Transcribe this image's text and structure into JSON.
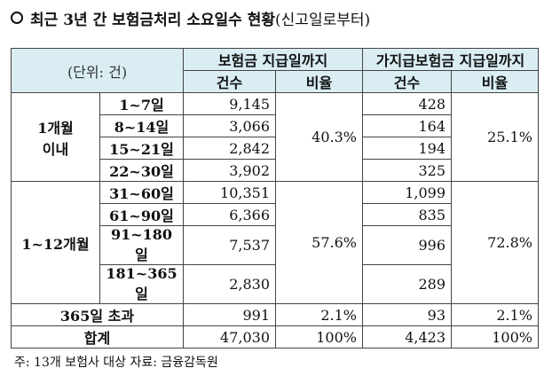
{
  "title": {
    "main": "최근 3년 간 보험금처리 소요일수 현황",
    "note": "(신고일로부터)"
  },
  "header": {
    "unit": "(단위: 건)",
    "group_a": "보험금 지급일까지",
    "group_b": "가지급보험금 지급일까지",
    "count": "건수",
    "ratio": "비율"
  },
  "group1": {
    "label_line1": "1개월",
    "label_line2": "이내",
    "ratio_a": "40.3%",
    "ratio_b": "25.1%",
    "rows": [
      {
        "range": "1~7일",
        "a": "9,145",
        "b": "428"
      },
      {
        "range": "8~14일",
        "a": "3,066",
        "b": "164"
      },
      {
        "range": "15~21일",
        "a": "2,842",
        "b": "194"
      },
      {
        "range": "22~30일",
        "a": "3,902",
        "b": "325"
      }
    ]
  },
  "group2": {
    "label": "1~12개월",
    "ratio_a": "57.6%",
    "ratio_b": "72.8%",
    "rows": [
      {
        "range": "31~60일",
        "a": "10,351",
        "b": "1,099"
      },
      {
        "range": "61~90일",
        "a": "6,366",
        "b": "835"
      },
      {
        "range": "91~180일",
        "a": "7,537",
        "b": "996"
      },
      {
        "range": "181~365일",
        "a": "2,830",
        "b": "289"
      }
    ]
  },
  "over": {
    "label": "365일 초과",
    "a": "991",
    "ratio_a": "2.1%",
    "b": "93",
    "ratio_b": "2.1%"
  },
  "total": {
    "label": "합계",
    "a": "47,030",
    "ratio_a": "100%",
    "b": "4,423",
    "ratio_b": "100%"
  },
  "footnote": "주: 13개 보험사 대상 자료: 금융감독원"
}
